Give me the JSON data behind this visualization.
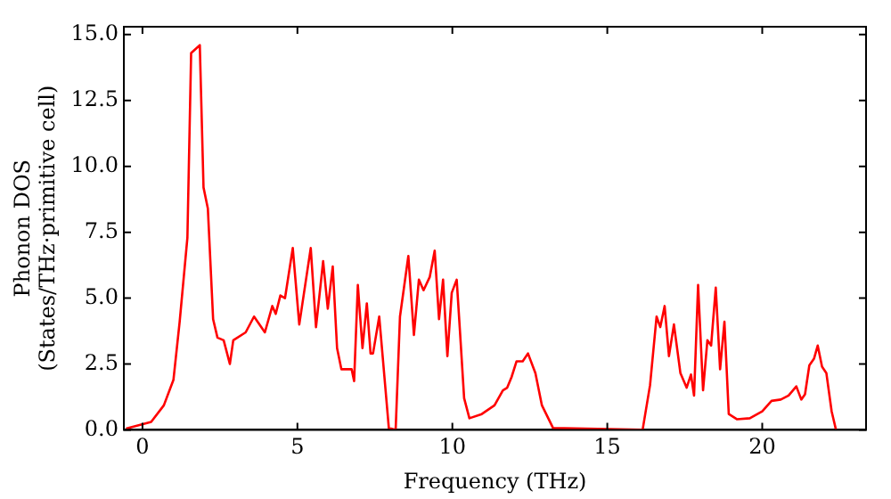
{
  "chart_data": {
    "type": "line",
    "xlabel": "Frequency (THz)",
    "ylabel": "Phonon DOS\n(States/THz·primitive cell)",
    "xlim": [
      -0.6,
      23.35
    ],
    "ylim": [
      0,
      15.3
    ],
    "xticks": [
      0,
      5,
      10,
      15,
      20
    ],
    "yticks": [
      {
        "value": 0,
        "label": "0.0"
      },
      {
        "value": 2.5,
        "label": "2.5"
      },
      {
        "value": 5,
        "label": "5.0"
      },
      {
        "value": 7.5,
        "label": "7.5"
      },
      {
        "value": 10,
        "label": "10.0"
      },
      {
        "value": 12.5,
        "label": "12.5"
      },
      {
        "value": 15,
        "label": "15.0"
      }
    ],
    "grid": false,
    "legend": false,
    "marker": "none",
    "line_style": "solid",
    "series": [
      {
        "color": "#ff0000",
        "x": [
          -0.53,
          0.28,
          0.69,
          1.0,
          1.2,
          1.45,
          1.57,
          1.85,
          1.97,
          2.11,
          2.28,
          2.42,
          2.62,
          2.82,
          2.93,
          3.33,
          3.6,
          3.95,
          4.19,
          4.3,
          4.45,
          4.6,
          4.85,
          5.06,
          5.43,
          5.6,
          5.83,
          5.98,
          6.14,
          6.28,
          6.42,
          6.75,
          6.83,
          6.95,
          7.1,
          7.24,
          7.36,
          7.44,
          7.64,
          7.95,
          8.17,
          8.31,
          8.58,
          8.76,
          8.92,
          9.07,
          9.27,
          9.43,
          9.57,
          9.7,
          9.84,
          9.98,
          10.14,
          10.24,
          10.38,
          10.55,
          10.95,
          11.36,
          11.63,
          11.77,
          11.91,
          12.07,
          12.27,
          12.44,
          12.68,
          12.89,
          13.25,
          16.14,
          16.38,
          16.59,
          16.71,
          16.85,
          16.99,
          17.15,
          17.36,
          17.56,
          17.7,
          17.8,
          17.93,
          18.09,
          18.23,
          18.35,
          18.5,
          18.64,
          18.78,
          18.92,
          19.19,
          19.6,
          20.0,
          20.3,
          20.6,
          20.85,
          21.1,
          21.26,
          21.38,
          21.52,
          21.67,
          21.79,
          21.93,
          22.07,
          22.24,
          22.38
        ],
        "values": [
          0.05,
          0.3,
          0.93,
          1.9,
          4.1,
          7.3,
          14.3,
          14.6,
          9.2,
          8.4,
          4.2,
          3.5,
          3.4,
          2.5,
          3.4,
          3.7,
          4.3,
          3.7,
          4.7,
          4.4,
          5.1,
          5.0,
          6.9,
          4.0,
          6.9,
          3.9,
          6.4,
          4.6,
          6.2,
          3.1,
          2.3,
          2.3,
          1.85,
          5.5,
          3.1,
          4.8,
          2.9,
          2.9,
          4.3,
          0.07,
          0,
          4.3,
          6.6,
          3.6,
          5.7,
          5.3,
          5.8,
          6.8,
          4.2,
          5.7,
          2.8,
          5.2,
          5.7,
          3.85,
          1.2,
          0.44,
          0.6,
          0.93,
          1.5,
          1.6,
          2.0,
          2.6,
          2.6,
          2.9,
          2.15,
          0.93,
          0.07,
          0,
          1.7,
          4.3,
          3.9,
          4.7,
          2.8,
          4.0,
          2.15,
          1.6,
          2.1,
          1.3,
          5.5,
          1.5,
          3.4,
          3.2,
          5.4,
          2.3,
          4.1,
          0.6,
          0.4,
          0.44,
          0.7,
          1.1,
          1.15,
          1.3,
          1.65,
          1.15,
          1.35,
          2.45,
          2.7,
          3.2,
          2.4,
          2.15,
          0.7,
          0
        ]
      }
    ]
  }
}
